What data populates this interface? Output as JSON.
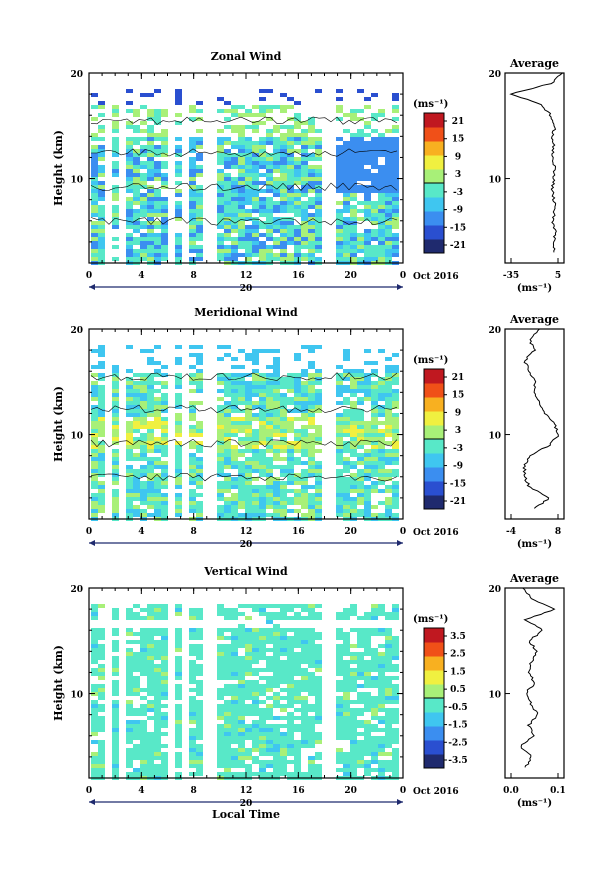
{
  "chart_data": [
    {
      "type": "heatmap",
      "title": "Zonal Wind",
      "ylabel": "Height (km)",
      "unit": "(ms⁻¹)",
      "xticks": [
        "0",
        "4",
        "8",
        "12",
        "16",
        "20",
        "0"
      ],
      "xlim": [
        0,
        24
      ],
      "yticks": [
        "20",
        "10"
      ],
      "ylim": [
        2,
        20
      ],
      "date_label": "20",
      "month_label": "Oct 2016",
      "colorbar": {
        "ticks": [
          "21",
          "15",
          "9",
          "3",
          "-3",
          "-9",
          "-15",
          "-21"
        ],
        "range": [
          -24,
          24
        ]
      },
      "profile": {
        "title": "Average",
        "xticks": [
          "-35",
          "5"
        ],
        "xlim": [
          -35,
          5
        ],
        "yticks": [
          "20",
          "10"
        ],
        "unit": "(ms⁻¹)",
        "heights": [
          3,
          4,
          5,
          6,
          7,
          8,
          9,
          10,
          11,
          12,
          13,
          14,
          15,
          16,
          17,
          18,
          19,
          20
        ],
        "values": [
          -1,
          -2,
          -1,
          -3,
          -1,
          -2,
          -3,
          -2,
          -1,
          -3,
          -2,
          -3,
          -1,
          -4,
          -10,
          -31,
          -4,
          4
        ]
      }
    },
    {
      "type": "heatmap",
      "title": "Meridional Wind",
      "ylabel": "Height (km)",
      "unit": "(ms⁻¹)",
      "xticks": [
        "0",
        "4",
        "8",
        "12",
        "16",
        "20",
        "0"
      ],
      "xlim": [
        0,
        24
      ],
      "yticks": [
        "20",
        "10"
      ],
      "ylim": [
        2,
        20
      ],
      "date_label": "20",
      "month_label": "Oct 2016",
      "colorbar": {
        "ticks": [
          "21",
          "15",
          "9",
          "3",
          "-3",
          "-9",
          "-15",
          "-21"
        ],
        "range": [
          -24,
          24
        ]
      },
      "profile": {
        "title": "Average",
        "xticks": [
          "-4",
          "8"
        ],
        "xlim": [
          -4,
          8
        ],
        "yticks": [
          "20",
          "10"
        ],
        "unit": "(ms⁻¹)",
        "heights": [
          3,
          4,
          5,
          6,
          7,
          8,
          9,
          10,
          11,
          12,
          13,
          14,
          15,
          16,
          17,
          18,
          19,
          20
        ],
        "values": [
          2,
          5,
          1,
          0,
          0,
          1,
          5,
          7,
          6,
          4,
          3,
          2,
          2,
          1,
          0,
          2,
          1,
          3
        ]
      }
    },
    {
      "type": "heatmap",
      "title": "Vertical Wind",
      "ylabel": "Height (km)",
      "xlabel": "Local Time",
      "unit": "(ms⁻¹)",
      "xticks": [
        "0",
        "4",
        "8",
        "12",
        "16",
        "20",
        "0"
      ],
      "xlim": [
        0,
        24
      ],
      "yticks": [
        "20",
        "10"
      ],
      "ylim": [
        2,
        20
      ],
      "date_label": "20",
      "month_label": "Oct 2016",
      "colorbar": {
        "ticks": [
          "3.5",
          "2.5",
          "1.5",
          "0.5",
          "-0.5",
          "-1.5",
          "-2.5",
          "-3.5"
        ],
        "range": [
          -4,
          4
        ]
      },
      "profile": {
        "title": "Average",
        "xticks": [
          "0.0",
          "0.1"
        ],
        "xlim": [
          -0.05,
          0.15
        ],
        "yticks": [
          "20",
          "10"
        ],
        "unit": "(ms⁻¹)",
        "heights": [
          3,
          4,
          5,
          6,
          7,
          8,
          9,
          10,
          11,
          12,
          13,
          14,
          15,
          16,
          17,
          18,
          19,
          20
        ],
        "values": [
          0.02,
          0.04,
          0.0,
          0.05,
          0.03,
          0.06,
          0.04,
          0.02,
          0.05,
          0.03,
          0.04,
          0.06,
          0.03,
          0.08,
          0.02,
          0.12,
          0.04,
          0.01
        ]
      }
    }
  ],
  "colors": {
    "scale": [
      "#1f2a6e",
      "#2a4fd0",
      "#3b8ef0",
      "#3fc6f0",
      "#58e8c8",
      "#a8f078",
      "#f0f040",
      "#f8b020",
      "#f05018",
      "#c01820"
    ]
  }
}
